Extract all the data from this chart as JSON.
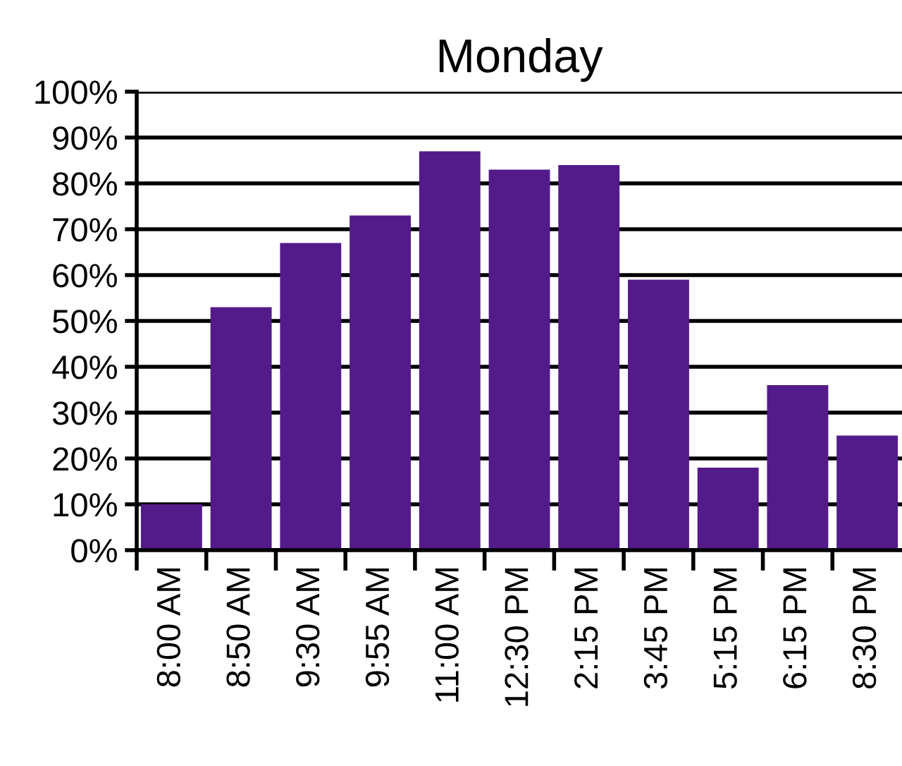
{
  "chart_data": {
    "type": "bar",
    "title": "Monday",
    "categories": [
      "8:00 AM",
      "8:50 AM",
      "9:30 AM",
      "9:55 AM",
      "11:00 AM",
      "12:30 PM",
      "2:15 PM",
      "3:45 PM",
      "5:15 PM",
      "6:15 PM",
      "8:30 PM"
    ],
    "values": [
      10,
      53,
      67,
      73,
      87,
      83,
      84,
      59,
      18,
      36,
      25
    ],
    "color": "#531b8a",
    "ylim": [
      0,
      100
    ],
    "yticks": [
      {
        "value": 0,
        "label": "0%"
      },
      {
        "value": 10,
        "label": "10%"
      },
      {
        "value": 20,
        "label": "20%"
      },
      {
        "value": 30,
        "label": "30%"
      },
      {
        "value": 40,
        "label": "40%"
      },
      {
        "value": 50,
        "label": "50%"
      },
      {
        "value": 60,
        "label": "60%"
      },
      {
        "value": 70,
        "label": "70%"
      },
      {
        "value": 80,
        "label": "80%"
      },
      {
        "value": 90,
        "label": "90%"
      },
      {
        "value": 100,
        "label": "100%"
      }
    ],
    "grid": "y",
    "legend": false
  }
}
